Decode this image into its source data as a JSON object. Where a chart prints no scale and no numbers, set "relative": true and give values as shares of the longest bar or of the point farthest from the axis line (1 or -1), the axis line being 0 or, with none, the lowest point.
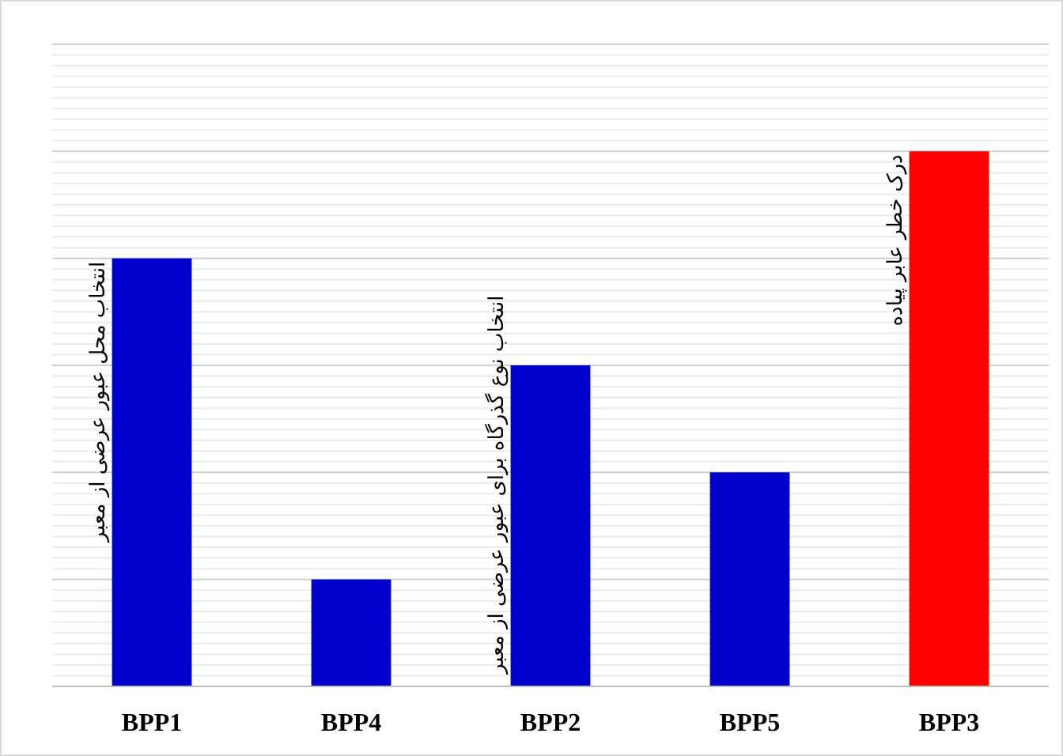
{
  "chart_data": {
    "type": "bar",
    "relative": true,
    "grid": "y",
    "categories": [
      "BPP1",
      "BPP4",
      "BPP2",
      "BPP5",
      "BPP3"
    ],
    "values": [
      0.8,
      0.2,
      0.6,
      0.4,
      1
    ],
    "colors": [
      "#0000cc",
      "#0000cc",
      "#0000cc",
      "#0000cc",
      "#ff0000"
    ],
    "annotations": [
      {
        "text": "انتخاب محل عبور عرضی از معبر",
        "x": "BPP1",
        "y": 0.8
      },
      {
        "text": "انتخاب نوع گذرگاه برای عبور عرضی از معبر",
        "x": "BPP2",
        "y": 0.6
      },
      {
        "text": "درک خطر عابر پیاده",
        "x": "BPP3",
        "y": 1
      }
    ]
  }
}
